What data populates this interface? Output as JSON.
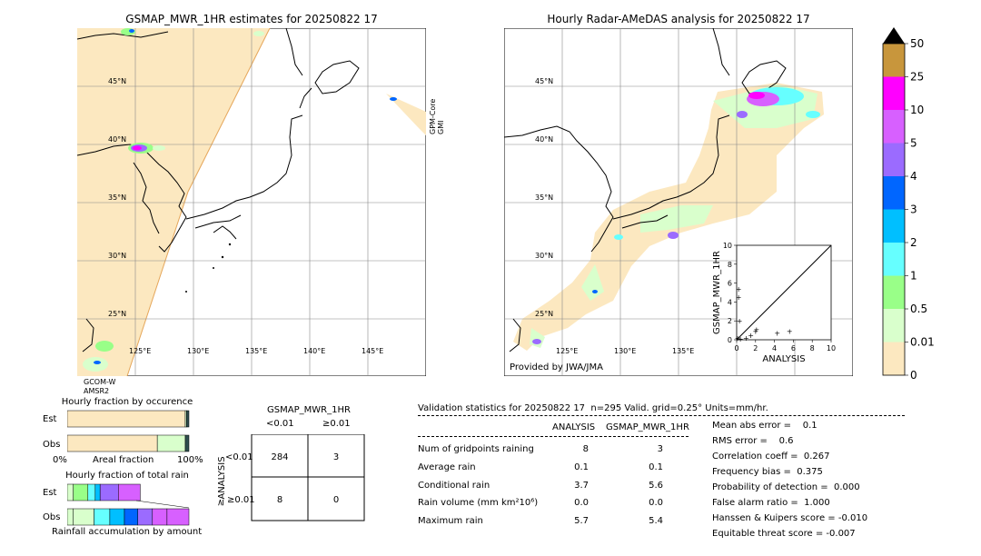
{
  "left_map": {
    "title": "GSMAP_MWR_1HR estimates for 20250822 17",
    "lat_labels": [
      "45°N",
      "40°N",
      "35°N",
      "30°N",
      "25°N"
    ],
    "lon_labels": [
      "125°E",
      "130°E",
      "135°E",
      "140°E",
      "145°E"
    ],
    "side_label_1": "GPM-Core",
    "side_label_2": "GMI",
    "bottom_label_1": "GCOM-W",
    "bottom_label_2": "AMSR2"
  },
  "right_map": {
    "title": "Hourly Radar-AMeDAS analysis for 20250822 17",
    "lat_labels": [
      "45°N",
      "40°N",
      "35°N",
      "30°N",
      "25°N"
    ],
    "lon_labels": [
      "125°E",
      "130°E",
      "135°E"
    ],
    "credit": "Provided by JWA/JMA"
  },
  "colorbar": {
    "labels": [
      "50",
      "25",
      "10",
      "5",
      "4",
      "3",
      "2",
      "1",
      "0.5",
      "0.01",
      "0"
    ],
    "colors": [
      "#c8963c",
      "#ff00ff",
      "#d760ff",
      "#9b6bff",
      "#0066ff",
      "#00bfff",
      "#66ffff",
      "#99ff88",
      "#d9ffcc",
      "#fce8c0"
    ]
  },
  "occurrence": {
    "title": "Hourly fraction by occurence",
    "row_est": "Est",
    "row_obs": "Obs",
    "axis_left": "0%",
    "axis_mid": "Areal fraction",
    "axis_right": "100%"
  },
  "total_rain": {
    "title": "Hourly fraction of total rain",
    "row_est": "Est",
    "row_obs": "Obs",
    "caption": "Rainfall accumulation by amount"
  },
  "contingency": {
    "title": "GSMAP_MWR_1HR",
    "col_low": "<0.01",
    "col_high": "≥0.01",
    "row_axis": "ANALYSIS",
    "row_low": "<0.01",
    "row_high": "≥0.01",
    "cells": [
      "284",
      "3",
      "8",
      "0"
    ]
  },
  "validation": {
    "header": "Validation statistics for 20250822 17  n=295 Valid. grid=0.25° Units=mm/hr.",
    "col_analysis": "ANALYSIS",
    "col_est": "GSMAP_MWR_1HR",
    "rows": [
      {
        "label": "Num of gridpoints raining",
        "analysis": "8",
        "est": "3"
      },
      {
        "label": "Average rain",
        "analysis": "0.1",
        "est": "0.1"
      },
      {
        "label": "Conditional rain",
        "analysis": "3.7",
        "est": "5.6"
      },
      {
        "label": "Rain volume (mm km²10⁶)",
        "analysis": "0.0",
        "est": "0.0"
      },
      {
        "label": "Maximum rain",
        "analysis": "5.7",
        "est": "5.4"
      }
    ],
    "scores": [
      "Mean abs error =    0.1",
      "RMS error =    0.6",
      "Correlation coeff =  0.267",
      "Frequency bias =  0.375",
      "Probability of detection =  0.000",
      "False alarm ratio =  1.000",
      "Hanssen & Kuipers score = -0.010",
      "Equitable threat score = -0.007"
    ]
  },
  "chart_data": [
    {
      "type": "scatter",
      "xlabel": "ANALYSIS",
      "ylabel": "GSMAP_MWR_1HR",
      "xlim": [
        0,
        10
      ],
      "ylim": [
        0,
        10
      ],
      "xticks": [
        "0",
        "2",
        "4",
        "6",
        "8",
        "10"
      ],
      "yticks": [
        "0",
        "2",
        "4",
        "6",
        "8",
        "10"
      ],
      "points": [
        {
          "x": 0.2,
          "y": 5.4
        },
        {
          "x": 0.2,
          "y": 4.5
        },
        {
          "x": 0.3,
          "y": 2.0
        },
        {
          "x": 0.1,
          "y": 0.2
        },
        {
          "x": 0.4,
          "y": 0.1
        },
        {
          "x": 1.0,
          "y": 0.2
        },
        {
          "x": 1.5,
          "y": 0.5
        },
        {
          "x": 2.0,
          "y": 0.9
        },
        {
          "x": 2.1,
          "y": 1.1
        },
        {
          "x": 4.3,
          "y": 0.7
        },
        {
          "x": 5.6,
          "y": 0.9
        }
      ]
    },
    {
      "type": "bar",
      "title": "Hourly fraction by occurence",
      "categories": [
        "Est",
        "Obs"
      ],
      "series": [
        {
          "values": [
            0.97,
            0.74
          ]
        },
        {
          "values": [
            0.01,
            0.23
          ]
        },
        {
          "values": [
            0.02,
            0.03
          ]
        }
      ],
      "colors": [
        "#fce8c0",
        "#d9ffcc",
        "#2f4f4f"
      ]
    },
    {
      "type": "bar",
      "title": "Hourly fraction of total rain",
      "categories": [
        "Est",
        "Obs"
      ],
      "est_segments": [
        0.05,
        0.12,
        0.06,
        0.04,
        0.15,
        0.18
      ],
      "est_colors": [
        "#d9ffcc",
        "#99ff88",
        "#66ffff",
        "#00bfff",
        "#9b6bff",
        "#d760ff"
      ],
      "obs_segments": [
        0.05,
        0.17,
        0.13,
        0.12,
        0.11,
        0.12,
        0.12,
        0.18
      ],
      "obs_colors": [
        "#d9ffcc",
        "#d9ffcc",
        "#66ffff",
        "#00bfff",
        "#0066ff",
        "#9b6bff",
        "#d760ff",
        "#d760ff"
      ]
    }
  ]
}
